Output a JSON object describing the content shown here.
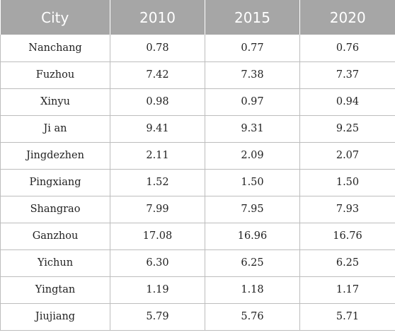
{
  "table": {
    "headers": [
      "City",
      "2010",
      "2015",
      "2020"
    ],
    "rows": [
      [
        "Nanchang",
        "0.78",
        "0.77",
        "0.76"
      ],
      [
        "Fuzhou",
        "7.42",
        "7.38",
        "7.37"
      ],
      [
        "Xinyu",
        "0.98",
        "0.97",
        "0.94"
      ],
      [
        "Ji an",
        "9.41",
        "9.31",
        "9.25"
      ],
      [
        "Jingdezhen",
        "2.11",
        "2.09",
        "2.07"
      ],
      [
        "Pingxiang",
        "1.52",
        "1.50",
        "1.50"
      ],
      [
        "Shangrao",
        "7.99",
        "7.95",
        "7.93"
      ],
      [
        "Ganzhou",
        "17.08",
        "16.96",
        "16.76"
      ],
      [
        "Yichun",
        "6.30",
        "6.25",
        "6.25"
      ],
      [
        "Yingtan",
        "1.19",
        "1.18",
        "1.17"
      ],
      [
        "Jiujiang",
        "5.79",
        "5.76",
        "5.71"
      ]
    ]
  }
}
